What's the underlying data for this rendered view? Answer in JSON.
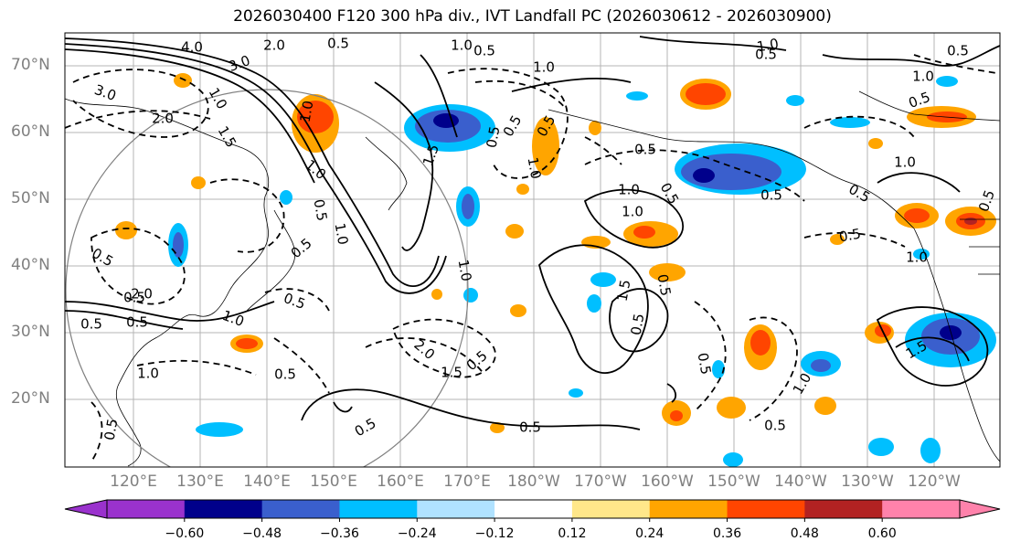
{
  "title": "2026030400 F120 300 hPa div., IVT Landfall PC (2026030612 - 2026030900)",
  "latitude_labels": [
    "70°N",
    "60°N",
    "50°N",
    "40°N",
    "30°N",
    "20°N"
  ],
  "longitude_labels": [
    "120°E",
    "130°E",
    "140°E",
    "150°E",
    "160°E",
    "170°E",
    "180°W",
    "170°W",
    "160°W",
    "150°W",
    "140°W",
    "130°W",
    "120°W"
  ],
  "colorbar": {
    "ticks": [
      "−0.60",
      "−0.48",
      "−0.36",
      "−0.24",
      "−0.12",
      "0.12",
      "0.24",
      "0.36",
      "0.48",
      "0.60"
    ],
    "colors": [
      "#9a32cd",
      "#00008b",
      "#3a5fcd",
      "#00bfff",
      "#b0e2ff",
      "#ffffff",
      "#ffe78a",
      "#ffa500",
      "#ff4500",
      "#b22222",
      "#ff82ab"
    ]
  },
  "contour_labels": [
    "4.0",
    "2.0",
    "3.0",
    "3.0",
    "2.0",
    "1.0",
    "1.5",
    "1.0",
    "0.5",
    "1.0",
    "0.5",
    "1.0",
    "1.0",
    "0.5",
    "0.5",
    "1.5",
    "1.0",
    "0.5",
    "0.5",
    "0.5",
    "1.0",
    "0.5",
    "1.5",
    "2.0",
    "0.5",
    "1.0",
    "0.5",
    "1.0",
    "1.0",
    "0.5",
    "0.5",
    "0.5",
    "0.5",
    "1.5",
    "1.0",
    "0.5",
    "0.5",
    "1.0",
    "1.5",
    "1.0",
    "0.5",
    "0.5",
    "1.0",
    "0.5",
    "1.0",
    "0.5",
    "0.5",
    "0.5",
    "0.5",
    "0.5",
    "1.0",
    "0.5",
    "0.5",
    "2.0",
    "0.5",
    "1.0",
    "0.5",
    "0.5",
    "0.5"
  ]
}
